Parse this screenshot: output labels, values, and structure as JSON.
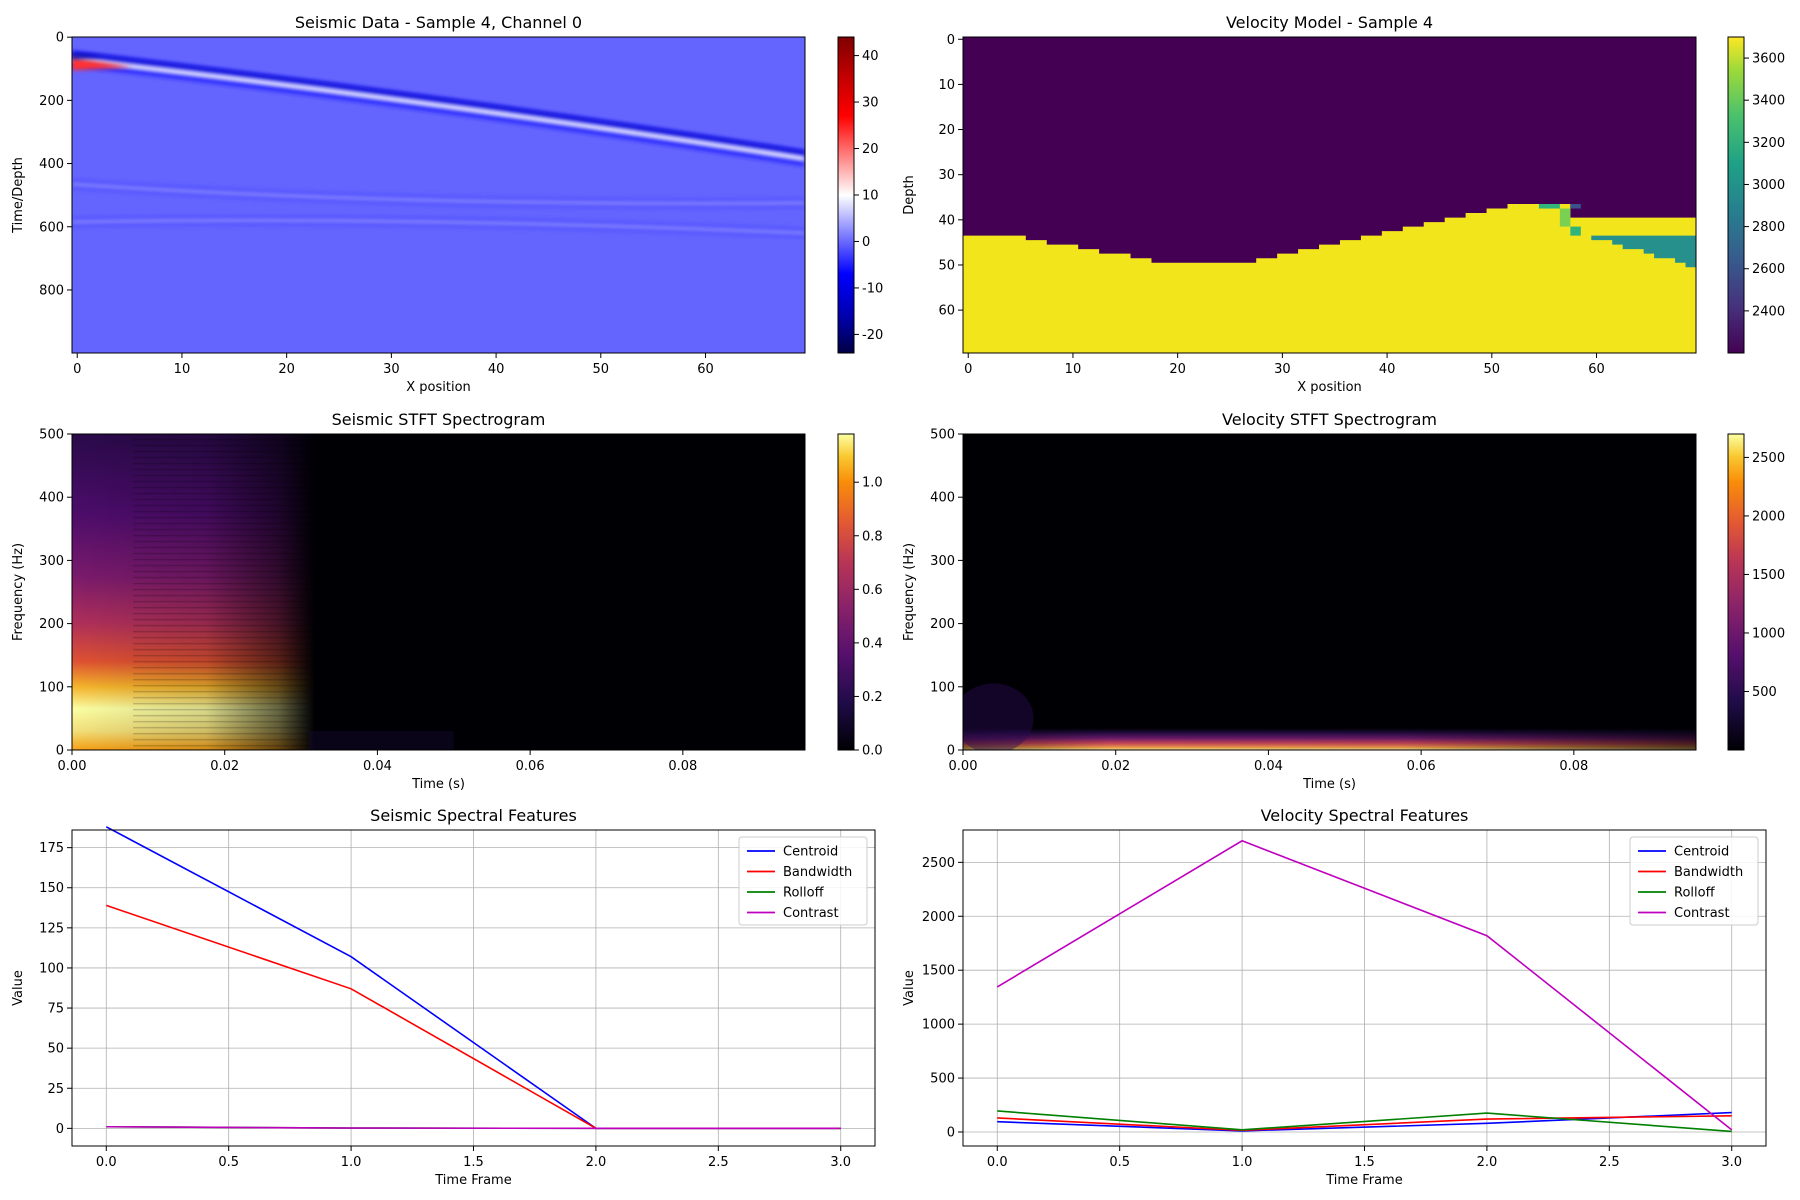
{
  "colors": {
    "centroid": "#0000ff",
    "bandwidth": "#ff0000",
    "rolloff": "#008000",
    "contrast": "#bf00bf",
    "velocity_low": "#440154",
    "velocity_high": "#f2e51c",
    "velocity_mid": "#26908c"
  },
  "chart_data": [
    {
      "id": "seismic-data",
      "type": "heatmap",
      "title": "Seismic Data - Sample 4, Channel 0",
      "xlabel": "X position",
      "ylabel": "Time/Depth",
      "xlim": [
        -0.5,
        69.5
      ],
      "ylim": [
        999.5,
        -0.5
      ],
      "xticks": [
        0,
        10,
        20,
        30,
        40,
        50,
        60
      ],
      "yticks": [
        0,
        200,
        400,
        600,
        800
      ],
      "colormap": "seismic",
      "colorbar": {
        "min": -24,
        "max": 44,
        "ticks": [
          -20,
          -10,
          0,
          10,
          20,
          30,
          40
        ]
      },
      "events": [
        {
          "kind": "direct-wave",
          "t_at_x0": 82,
          "t_at_x69": 385
        },
        {
          "kind": "reflection-1",
          "t_at_x0": 465,
          "t_apex": 545,
          "t_at_x69": 525
        },
        {
          "kind": "reflection-2",
          "t_at_x0": 585,
          "t_apex": 545,
          "t_at_x69": 620
        }
      ]
    },
    {
      "id": "velocity-model",
      "type": "heatmap",
      "title": "Velocity Model - Sample 4",
      "xlabel": "X position",
      "ylabel": "Depth",
      "xlim": [
        -0.5,
        69.5
      ],
      "ylim": [
        69.5,
        -0.5
      ],
      "xticks": [
        0,
        10,
        20,
        30,
        40,
        50,
        60
      ],
      "yticks": [
        0,
        10,
        20,
        30,
        40,
        50,
        60
      ],
      "colormap": "viridis",
      "colorbar": {
        "min": 2200,
        "max": 3700,
        "ticks": [
          2400,
          2600,
          2800,
          3000,
          3200,
          3400,
          3600
        ]
      },
      "layers": [
        {
          "velocity": 2200,
          "position": "upper"
        },
        {
          "velocity": 3700,
          "position": "lower"
        },
        {
          "velocity": 3050,
          "position": "fault-block"
        }
      ]
    },
    {
      "id": "seismic-stft",
      "type": "heatmap",
      "title": "Seismic STFT Spectrogram",
      "xlabel": "Time (s)",
      "ylabel": "Frequency (Hz)",
      "xlim": [
        0,
        0.096
      ],
      "ylim": [
        0,
        500
      ],
      "xticks": [
        "0.00",
        "0.02",
        "0.04",
        "0.06",
        "0.08"
      ],
      "yticks": [
        0,
        100,
        200,
        300,
        400,
        500
      ],
      "colormap": "inferno",
      "colorbar": {
        "min": 0,
        "max": 1.18,
        "ticks": [
          "0.0",
          "0.2",
          "0.4",
          "0.6",
          "0.8",
          "1.0"
        ]
      },
      "energy": {
        "time_end": 0.031,
        "peak_frequency": 65,
        "peak_value": 1.15
      }
    },
    {
      "id": "velocity-stft",
      "type": "heatmap",
      "title": "Velocity STFT Spectrogram",
      "xlabel": "Time (s)",
      "ylabel": "Frequency (Hz)",
      "xlim": [
        0,
        0.096
      ],
      "ylim": [
        0,
        500
      ],
      "xticks": [
        "0.00",
        "0.02",
        "0.04",
        "0.06",
        "0.08"
      ],
      "yticks": [
        0,
        100,
        200,
        300,
        400,
        500
      ],
      "colormap": "inferno",
      "colorbar": {
        "min": 0,
        "max": 2700,
        "ticks": [
          500,
          1000,
          1500,
          2000,
          2500
        ]
      },
      "energy": {
        "band": [
          0,
          25
        ],
        "peak_value": 2700
      }
    },
    {
      "id": "seismic-features",
      "type": "line",
      "title": "Seismic Spectral Features",
      "xlabel": "Time Frame",
      "ylabel": "Value",
      "xlim": [
        -0.14,
        3.14
      ],
      "ylim": [
        -11,
        186
      ],
      "xticks": [
        "0.0",
        "0.5",
        "1.0",
        "1.5",
        "2.0",
        "2.5",
        "3.0"
      ],
      "yticks": [
        0,
        25,
        50,
        75,
        100,
        125,
        150,
        175
      ],
      "grid": true,
      "legend": "top-right",
      "x": [
        0,
        1,
        2,
        3
      ],
      "series": [
        {
          "name": "Centroid",
          "color": "#0000ff",
          "values": [
            188,
            107,
            0,
            0
          ]
        },
        {
          "name": "Bandwidth",
          "color": "#ff0000",
          "values": [
            139,
            87,
            0,
            0
          ]
        },
        {
          "name": "Rolloff",
          "color": "#008000",
          "values": [
            1,
            0.2,
            0,
            0
          ]
        },
        {
          "name": "Contrast",
          "color": "#bf00bf",
          "values": [
            1,
            0.2,
            0,
            0
          ]
        }
      ]
    },
    {
      "id": "velocity-features",
      "type": "line",
      "title": "Velocity Spectral Features",
      "xlabel": "Time Frame",
      "ylabel": "Value",
      "xlim": [
        -0.14,
        3.14
      ],
      "ylim": [
        -130,
        2800
      ],
      "xticks": [
        "0.0",
        "0.5",
        "1.0",
        "1.5",
        "2.0",
        "2.5",
        "3.0"
      ],
      "yticks": [
        0,
        500,
        1000,
        1500,
        2000,
        2500
      ],
      "grid": true,
      "legend": "top-right",
      "x": [
        0,
        1,
        2,
        3
      ],
      "series": [
        {
          "name": "Centroid",
          "color": "#0000ff",
          "values": [
            95,
            10,
            80,
            180
          ]
        },
        {
          "name": "Bandwidth",
          "color": "#ff0000",
          "values": [
            130,
            15,
            120,
            150
          ]
        },
        {
          "name": "Rolloff",
          "color": "#008000",
          "values": [
            195,
            20,
            175,
            5
          ]
        },
        {
          "name": "Contrast",
          "color": "#bf00bf",
          "values": [
            1345,
            2700,
            1820,
            20
          ]
        }
      ]
    }
  ]
}
